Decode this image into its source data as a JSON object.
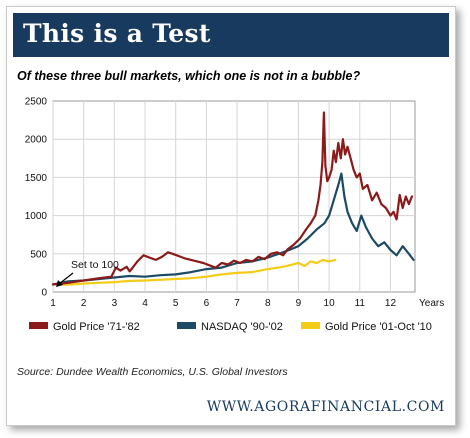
{
  "header": {
    "title": "This is a Test",
    "subtitle": "Of these three bull markets, which one is not in a bubble?"
  },
  "footer": {
    "source": "Source:  Dundee Wealth Economics, U.S. Global Investors",
    "site": "WWW.AGORAFINANCIAL.COM"
  },
  "chart_data": {
    "type": "line",
    "title": "",
    "xlabel": "Years",
    "ylabel": "",
    "xlim": [
      1,
      12.8
    ],
    "ylim": [
      0,
      2500
    ],
    "x_ticks": [
      1,
      2,
      3,
      4,
      5,
      6,
      7,
      8,
      9,
      10,
      11,
      12
    ],
    "y_ticks": [
      0,
      500,
      1000,
      1500,
      2000,
      2500
    ],
    "grid": true,
    "legend_position": "bottom",
    "annotation": {
      "text": "Set to 100",
      "x": 1.1,
      "y": 100
    },
    "series": [
      {
        "name": "Gold Price '71-'82",
        "color": "#8b1a1a",
        "x": [
          1,
          1.5,
          2,
          2.5,
          2.9,
          3.05,
          3.2,
          3.4,
          3.5,
          3.75,
          3.95,
          4.15,
          4.35,
          4.55,
          4.75,
          4.9,
          5.1,
          5.3,
          5.5,
          5.7,
          5.9,
          6.1,
          6.3,
          6.5,
          6.7,
          6.9,
          7.1,
          7.3,
          7.5,
          7.7,
          7.9,
          8.1,
          8.3,
          8.5,
          8.65,
          8.85,
          9.05,
          9.25,
          9.4,
          9.55,
          9.65,
          9.72,
          9.78,
          9.83,
          9.88,
          9.94,
          10.0,
          10.08,
          10.15,
          10.22,
          10.3,
          10.38,
          10.45,
          10.52,
          10.6,
          10.7,
          10.8,
          10.9,
          11.0,
          11.1,
          11.25,
          11.4,
          11.55,
          11.7,
          11.85,
          12.0,
          12.1,
          12.2,
          12.3,
          12.4,
          12.5,
          12.6,
          12.7
        ],
        "y": [
          100,
          120,
          150,
          180,
          200,
          320,
          280,
          330,
          270,
          400,
          480,
          450,
          420,
          460,
          520,
          500,
          470,
          440,
          420,
          400,
          380,
          350,
          320,
          380,
          360,
          410,
          380,
          420,
          400,
          460,
          430,
          500,
          520,
          480,
          560,
          620,
          700,
          820,
          900,
          1000,
          1200,
          1400,
          1700,
          2350,
          1650,
          1450,
          1500,
          1600,
          1850,
          1700,
          1950,
          1750,
          2000,
          1800,
          1900,
          1750,
          1600,
          1500,
          1550,
          1350,
          1400,
          1200,
          1300,
          1150,
          1100,
          1000,
          1050,
          950,
          1270,
          1100,
          1250,
          1150,
          1250
        ]
      },
      {
        "name": "NASDAQ '90-'02",
        "color": "#1d4a63",
        "x": [
          1,
          1.5,
          2,
          2.5,
          3,
          3.5,
          4,
          4.5,
          5,
          5.5,
          6,
          6.5,
          7,
          7.5,
          8,
          8.5,
          9,
          9.3,
          9.6,
          9.85,
          10.0,
          10.15,
          10.3,
          10.4,
          10.5,
          10.6,
          10.75,
          10.9,
          11.05,
          11.2,
          11.4,
          11.6,
          11.8,
          12.0,
          12.2,
          12.4,
          12.6,
          12.75
        ],
        "y": [
          100,
          140,
          150,
          170,
          190,
          210,
          200,
          220,
          230,
          260,
          300,
          320,
          380,
          400,
          450,
          520,
          600,
          700,
          820,
          900,
          1000,
          1200,
          1400,
          1550,
          1250,
          1050,
          900,
          800,
          1000,
          850,
          700,
          600,
          650,
          550,
          480,
          600,
          500,
          420
        ]
      },
      {
        "name": "Gold Price '01-Oct '10",
        "color": "#f3cc17",
        "x": [
          1,
          1.5,
          2,
          2.5,
          3,
          3.5,
          4,
          4.5,
          5,
          5.5,
          6,
          6.5,
          7,
          7.5,
          8,
          8.5,
          9,
          9.2,
          9.4,
          9.6,
          9.8,
          10.0,
          10.2
        ],
        "y": [
          100,
          95,
          110,
          120,
          130,
          145,
          150,
          160,
          170,
          180,
          200,
          230,
          250,
          260,
          300,
          330,
          380,
          340,
          400,
          380,
          420,
          400,
          420
        ]
      }
    ]
  }
}
